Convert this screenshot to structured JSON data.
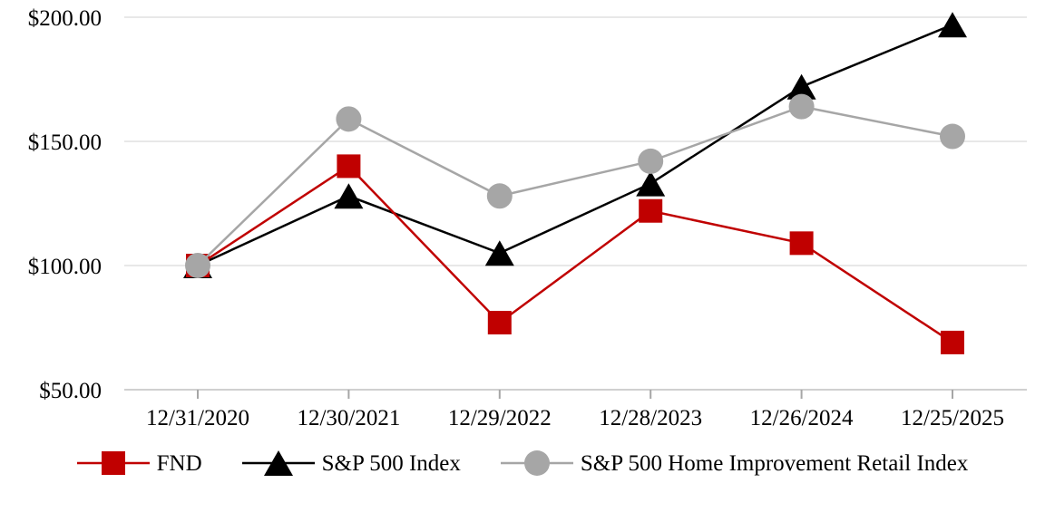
{
  "chart_data": {
    "type": "line",
    "title": "",
    "xlabel": "",
    "ylabel": "",
    "x_categories": [
      "12/31/2020",
      "12/30/2021",
      "12/29/2022",
      "12/28/2023",
      "12/26/2024",
      "12/25/2025"
    ],
    "y_axis": {
      "min": 50,
      "max": 200,
      "step": 50,
      "ticks": [
        {
          "value": 50,
          "label": "$50.00"
        },
        {
          "value": 100,
          "label": "$100.00"
        },
        {
          "value": 150,
          "label": "$150.00"
        },
        {
          "value": 200,
          "label": "$200.00"
        }
      ]
    },
    "grid": "horizontal-only",
    "legend_position": "bottom",
    "series": [
      {
        "name": "FND",
        "marker": "square",
        "color": "#C00000",
        "values": [
          100,
          140,
          77,
          122,
          109,
          69
        ]
      },
      {
        "name": "S&P 500 Index",
        "marker": "triangle",
        "color": "#000000",
        "values": [
          100,
          128,
          105,
          133,
          172,
          197
        ]
      },
      {
        "name": "S&P 500 Home Improvement Retail Index",
        "marker": "circle",
        "color": "#A6A6A6",
        "values": [
          100,
          159,
          128,
          142,
          164,
          152
        ]
      }
    ],
    "z_order": [
      1,
      0,
      2
    ]
  },
  "style_colors": {
    "gridline": "#E8E8E8",
    "axis_line": "#D0D0D0",
    "tick_mark": "#A6A6A6",
    "text": "#000000",
    "background": "#FFFFFF"
  }
}
